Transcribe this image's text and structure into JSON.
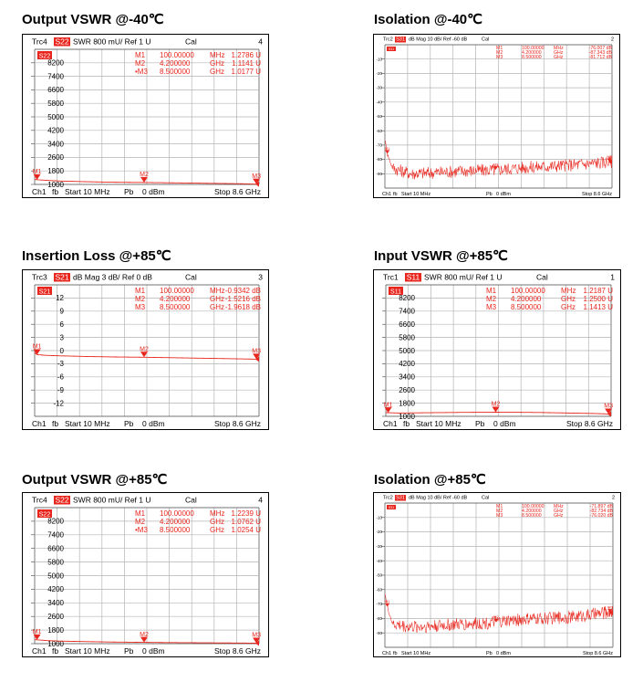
{
  "colors": {
    "trace": "#e8261d",
    "grid": "#b4b4b4",
    "frame": "#000000",
    "marker": "#e8261d"
  },
  "chart_data": [
    {
      "title": "Output VSWR @-40℃",
      "type": "line",
      "header": {
        "trc": "Trc4",
        "param": "S22",
        "format": "SWR",
        "scale": "800 mU/",
        "ref": "Ref 1 U",
        "cal": "Cal",
        "num": "4"
      },
      "footer": {
        "ch": "Ch1",
        "fb": "fb",
        "start": "Start 10 MHz",
        "pb": "Pb",
        "power": "0 dBm",
        "stop": "Stop 8.6 GHz"
      },
      "markers": [
        {
          "id": "M1",
          "label": "M1",
          "freq": "100.00000",
          "unit": "MHz",
          "value": "1.2786 U"
        },
        {
          "id": "M2",
          "label": "M2",
          "freq": "4.200000",
          "unit": "GHz",
          "value": "1.1141 U"
        },
        {
          "id": "M3",
          "label": "•M3",
          "freq": "8.500000",
          "unit": "GHz",
          "value": "1.0177 U"
        }
      ],
      "yticks": [
        "8200",
        "7400",
        "6600",
        "5800",
        "5000",
        "4200",
        "3400",
        "2600",
        "1800",
        "1000"
      ],
      "yrange": [
        1000,
        9000
      ],
      "xrange_ghz": [
        0.01,
        8.6
      ],
      "marker_points": [
        [
          0.1,
          1278.6
        ],
        [
          4.2,
          1114.1
        ],
        [
          8.5,
          1017.7
        ]
      ],
      "trace": {
        "kind": "smooth",
        "x": [
          0.01,
          0.1,
          0.5,
          1,
          2,
          3,
          4.2,
          5,
          6,
          7,
          8,
          8.5,
          8.6
        ],
        "y": [
          1300,
          1278.6,
          1240,
          1200,
          1160,
          1130,
          1114.1,
          1100,
          1080,
          1060,
          1040,
          1017.7,
          1020
        ]
      }
    },
    {
      "title": "Isolation @-40℃",
      "type": "line",
      "header": {
        "trc": "Trc2",
        "param": "S31",
        "format": "dB Mag",
        "scale": "10 dB/",
        "ref": "Ref -60 dB",
        "cal": "Cal",
        "num": "2"
      },
      "footer": {
        "ch": "Ch1",
        "fb": "fb",
        "start": "Start 10 MHz",
        "pb": "Pb",
        "power": "0 dBm",
        "stop": "Stop 8.6 GHz"
      },
      "markers": [
        {
          "id": "M1",
          "label": "M1",
          "freq": "100.00000",
          "unit": "MHz",
          "value": "-76.007 dB"
        },
        {
          "id": "M2",
          "label": "M2",
          "freq": "4.200000",
          "unit": "GHz",
          "value": "-87.343 dB"
        },
        {
          "id": "M3",
          "label": "M3",
          "freq": "8.500000",
          "unit": "GHz",
          "value": "-81.712 dB"
        }
      ],
      "yticks": [
        "-10",
        "-20",
        "-30",
        "-40",
        "-50",
        "-60",
        "-70",
        "-80",
        "-90"
      ],
      "yrange": [
        -100,
        0
      ],
      "xrange_ghz": [
        0.01,
        8.6
      ],
      "marker_points": [
        [
          0.1,
          -76.0
        ],
        [
          4.2,
          -87.3
        ],
        [
          8.5,
          -81.7
        ]
      ],
      "trace": {
        "kind": "noisy",
        "x": [
          0.01,
          0.1,
          0.3,
          1,
          2,
          3,
          4.2,
          5,
          6,
          7,
          8,
          8.6
        ],
        "y": [
          -66,
          -76,
          -86,
          -90,
          -89,
          -88,
          -87.3,
          -86,
          -85,
          -84,
          -82.5,
          -81.5
        ],
        "noise": 4.5
      }
    },
    {
      "title": "Insertion Loss @+85℃",
      "type": "line",
      "header": {
        "trc": "Trc3",
        "param": "S21",
        "format": "dB Mag",
        "scale": "3 dB/",
        "ref": "Ref 0 dB",
        "cal": "Cal",
        "num": "3"
      },
      "footer": {
        "ch": "Ch1",
        "fb": "fb",
        "start": "Start 10 MHz",
        "pb": "Pb",
        "power": "0 dBm",
        "stop": "Stop 8.6 GHz"
      },
      "markers": [
        {
          "id": "M1",
          "label": "M1",
          "freq": "100.00000",
          "unit": "MHz",
          "value": "-0.9342 dB"
        },
        {
          "id": "M2",
          "label": "M2",
          "freq": "4.200000",
          "unit": "GHz",
          "value": "-1.5216 dB"
        },
        {
          "id": "M3",
          "label": "M3",
          "freq": "8.500000",
          "unit": "GHz",
          "value": "-1.9618 dB"
        }
      ],
      "yticks": [
        "12",
        "9",
        "6",
        "3",
        "0",
        "-3",
        "-6",
        "-9",
        "-12"
      ],
      "yrange": [
        -15,
        15
      ],
      "xrange_ghz": [
        0.01,
        8.6
      ],
      "marker_points": [
        [
          0.1,
          -0.9342
        ],
        [
          4.2,
          -1.5216
        ],
        [
          8.5,
          -1.9618
        ]
      ],
      "trace": {
        "kind": "smooth",
        "x": [
          0.01,
          0.1,
          0.5,
          1,
          2,
          3,
          4.2,
          5,
          6,
          7,
          8,
          8.5,
          8.6
        ],
        "y": [
          -0.5,
          -0.9342,
          -1.1,
          -1.2,
          -1.35,
          -1.45,
          -1.5216,
          -1.6,
          -1.7,
          -1.8,
          -1.9,
          -1.9618,
          -1.98
        ]
      }
    },
    {
      "title": "Input VSWR @+85℃",
      "type": "line",
      "header": {
        "trc": "Trc1",
        "param": "S11",
        "format": "SWR",
        "scale": "800 mU/",
        "ref": "Ref 1 U",
        "cal": "Cal",
        "num": "1"
      },
      "footer": {
        "ch": "Ch1",
        "fb": "fb",
        "start": "Start 10 MHz",
        "pb": "Pb",
        "power": "0 dBm",
        "stop": "Stop 8.6 GHz"
      },
      "markers": [
        {
          "id": "M1",
          "label": "M1",
          "freq": "100.00000",
          "unit": "MHz",
          "value": "1.2187 U"
        },
        {
          "id": "M2",
          "label": "M2",
          "freq": "4.200000",
          "unit": "GHz",
          "value": "1.2500 U"
        },
        {
          "id": "M3",
          "label": "M3",
          "freq": "8.500000",
          "unit": "GHz",
          "value": "1.1413 U"
        }
      ],
      "yticks": [
        "8200",
        "7400",
        "6600",
        "5800",
        "5000",
        "4200",
        "3400",
        "2600",
        "1800",
        "1000"
      ],
      "yrange": [
        1000,
        9000
      ],
      "xrange_ghz": [
        0.01,
        8.6
      ],
      "marker_points": [
        [
          0.1,
          1218.7
        ],
        [
          4.2,
          1250.0
        ],
        [
          8.5,
          1141.3
        ]
      ],
      "trace": {
        "kind": "smooth",
        "x": [
          0.01,
          0.1,
          0.5,
          1,
          2,
          3,
          4.2,
          5,
          6,
          7,
          8,
          8.5,
          8.6
        ],
        "y": [
          1230,
          1218.7,
          1200,
          1210,
          1225,
          1240,
          1250,
          1245,
          1230,
          1200,
          1170,
          1141.3,
          1140
        ]
      }
    },
    {
      "title": "Output VSWR @+85℃",
      "type": "line",
      "header": {
        "trc": "Trc4",
        "param": "S22",
        "format": "SWR",
        "scale": "800 mU/",
        "ref": "Ref 1 U",
        "cal": "Cal",
        "num": "4"
      },
      "footer": {
        "ch": "Ch1",
        "fb": "fb",
        "start": "Start 10 MHz",
        "pb": "Pb",
        "power": "0 dBm",
        "stop": "Stop 8.6 GHz"
      },
      "markers": [
        {
          "id": "M1",
          "label": "M1",
          "freq": "100.00000",
          "unit": "MHz",
          "value": "1.2239 U"
        },
        {
          "id": "M2",
          "label": "M2",
          "freq": "4.200000",
          "unit": "GHz",
          "value": "1.0762 U"
        },
        {
          "id": "M3",
          "label": "•M3",
          "freq": "8.500000",
          "unit": "GHz",
          "value": "1.0254 U"
        }
      ],
      "yticks": [
        "8200",
        "7400",
        "6600",
        "5800",
        "5000",
        "4200",
        "3400",
        "2600",
        "1800",
        "1000"
      ],
      "yrange": [
        1000,
        9000
      ],
      "xrange_ghz": [
        0.01,
        8.6
      ],
      "marker_points": [
        [
          0.1,
          1223.9
        ],
        [
          4.2,
          1076.2
        ],
        [
          8.5,
          1025.4
        ]
      ],
      "trace": {
        "kind": "smooth",
        "x": [
          0.01,
          0.1,
          0.5,
          1,
          2,
          3,
          4.2,
          5,
          6,
          7,
          8,
          8.5,
          8.6
        ],
        "y": [
          1240,
          1223.9,
          1180,
          1150,
          1120,
          1095,
          1076.2,
          1065,
          1055,
          1045,
          1035,
          1025.4,
          1028
        ]
      }
    },
    {
      "title": "Isolation @+85℃",
      "type": "line",
      "header": {
        "trc": "Trc2",
        "param": "S31",
        "format": "dB Mag",
        "scale": "10 dB/",
        "ref": "Ref -60 dB",
        "cal": "Cal",
        "num": "2"
      },
      "footer": {
        "ch": "Ch1",
        "fb": "fb",
        "start": "Start 10 MHz",
        "pb": "Pb",
        "power": "0 dBm",
        "stop": "Stop 8.6 GHz"
      },
      "markers": [
        {
          "id": "M1",
          "label": "M1",
          "freq": "100.00000",
          "unit": "MHz",
          "value": "-71.897 dB"
        },
        {
          "id": "M2",
          "label": "M2",
          "freq": "4.200000",
          "unit": "GHz",
          "value": "-82.734 dB"
        },
        {
          "id": "M3",
          "label": "M3",
          "freq": "8.500000",
          "unit": "GHz",
          "value": "-76.020 dB"
        }
      ],
      "yticks": [
        "-10",
        "-20",
        "-30",
        "-40",
        "-50",
        "-60",
        "-70",
        "-80",
        "-90"
      ],
      "yrange": [
        -100,
        0
      ],
      "xrange_ghz": [
        0.01,
        8.6
      ],
      "marker_points": [
        [
          0.1,
          -71.9
        ],
        [
          4.2,
          -82.7
        ],
        [
          8.5,
          -76.0
        ]
      ],
      "trace": {
        "kind": "noisy",
        "x": [
          0.01,
          0.1,
          0.3,
          1,
          2,
          3,
          4.2,
          5,
          6,
          7,
          8,
          8.6
        ],
        "y": [
          -62,
          -72,
          -84,
          -86,
          -85,
          -84,
          -82.7,
          -81,
          -80,
          -79,
          -77,
          -75
        ],
        "noise": 4.5
      }
    }
  ]
}
